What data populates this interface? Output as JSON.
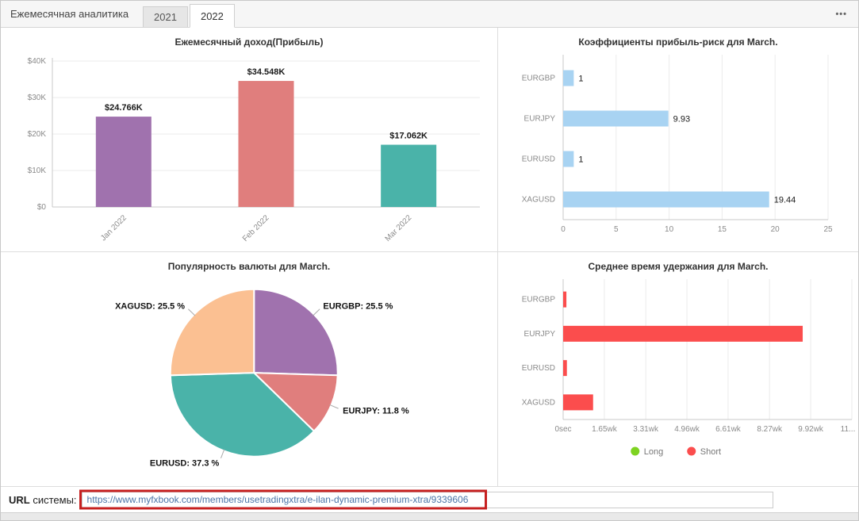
{
  "header": {
    "title": "Ежемесячная аналитика",
    "tabs": [
      {
        "label": "2021",
        "active": false
      },
      {
        "label": "2022",
        "active": true
      }
    ],
    "menu_icon_glyph": "•••"
  },
  "footer": {
    "url_label_strong": "URL",
    "url_label_rest": " системы:",
    "url_value": "https://www.myfxbook.com/members/usetradingxtra/e-ilan-dynamic-premium-xtra/9339606"
  },
  "colors": {
    "purple": "#a072ae",
    "salmon": "#e07e7d",
    "teal": "#4ab3a9",
    "peach": "#fbc092",
    "light_blue": "#a8d3f2",
    "red": "#fb4d4d",
    "green": "#7ed321",
    "axis": "#c9c9c9",
    "grid": "#ebebeb",
    "tick_label": "#8a8a8a",
    "value_label": "#1a1a1a"
  },
  "chart_data": [
    {
      "type": "bar",
      "title": "Ежемесячный доход(Прибыль)",
      "categories": [
        "Jan 2022",
        "Feb 2022",
        "Mar 2022"
      ],
      "values": [
        24766,
        34548,
        17062
      ],
      "value_labels": [
        "$24.766K",
        "$34.548K",
        "$17.062K"
      ],
      "bar_colors": [
        "#a072ae",
        "#e07e7d",
        "#4ab3a9"
      ],
      "ylim": [
        0,
        40000
      ],
      "yticks": [
        0,
        10000,
        20000,
        30000,
        40000
      ],
      "ytick_labels": [
        "$0",
        "$10K",
        "$20K",
        "$30K",
        "$40K"
      ],
      "grid": true
    },
    {
      "type": "horizontal_bar",
      "title": "Коэффициенты прибыль-риск для March.",
      "categories": [
        "EURGBP",
        "EURJPY",
        "EURUSD",
        "XAGUSD"
      ],
      "values": [
        1,
        9.93,
        1,
        19.44
      ],
      "value_labels": [
        "1",
        "9.93",
        "1",
        "19.44"
      ],
      "bar_color": "#a8d3f2",
      "xlim": [
        0,
        25
      ],
      "xticks": [
        0,
        5,
        10,
        15,
        20,
        25
      ],
      "xtick_labels": [
        "0",
        "5",
        "10",
        "15",
        "20",
        "25"
      ],
      "grid": true
    },
    {
      "type": "pie",
      "title": "Популярность валюты для March.",
      "slices": [
        {
          "label": "EURGBP",
          "value": 25.5,
          "color": "#a072ae",
          "text": "EURGBP: 25.5 %"
        },
        {
          "label": "EURJPY",
          "value": 11.8,
          "color": "#e07e7d",
          "text": "EURJPY: 11.8 %"
        },
        {
          "label": "EURUSD",
          "value": 37.3,
          "color": "#4ab3a9",
          "text": "EURUSD: 37.3 %"
        },
        {
          "label": "XAGUSD",
          "value": 25.5,
          "color": "#fbc092",
          "text": "XAGUSD: 25.5 %"
        }
      ]
    },
    {
      "type": "horizontal_bar",
      "title": "Среднее время удержания для March.",
      "categories": [
        "EURGBP",
        "EURJPY",
        "EURUSD",
        "XAGUSD"
      ],
      "values": [
        0.13,
        9.6,
        0.15,
        1.2
      ],
      "unit": "wk",
      "bar_color": "#fb4d4d",
      "xlim": [
        0,
        11.57
      ],
      "xticks": [
        0,
        1.65,
        3.31,
        4.96,
        6.61,
        8.27,
        9.92,
        11.57
      ],
      "xtick_labels": [
        "0sec",
        "1.65wk",
        "3.31wk",
        "4.96wk",
        "6.61wk",
        "8.27wk",
        "9.92wk",
        "11..."
      ],
      "legend": [
        {
          "label": "Long",
          "color": "#7ed321"
        },
        {
          "label": "Short",
          "color": "#fb4d4d"
        }
      ],
      "grid": true
    }
  ]
}
